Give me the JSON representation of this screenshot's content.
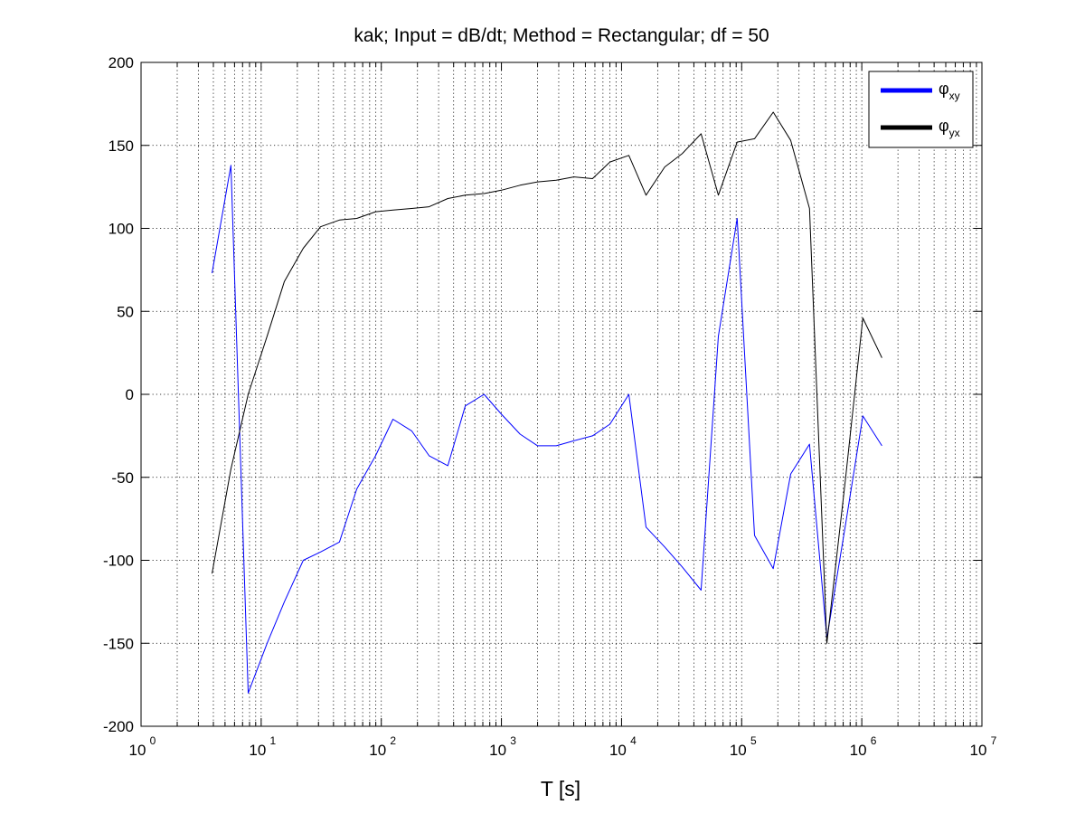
{
  "chart_data": {
    "type": "line",
    "title": "kak; Input = dB/dt; Method = Rectangular; df = 50",
    "xlabel": "T [s]",
    "ylabel": "",
    "xscale": "log",
    "xlim": [
      1,
      10000000
    ],
    "ylim": [
      -200,
      200
    ],
    "grid": true,
    "legend_position": "top-right",
    "x_tick_labels": [
      {
        "base": "10",
        "exp": "0"
      },
      {
        "base": "10",
        "exp": "1"
      },
      {
        "base": "10",
        "exp": "2"
      },
      {
        "base": "10",
        "exp": "3"
      },
      {
        "base": "10",
        "exp": "4"
      },
      {
        "base": "10",
        "exp": "5"
      },
      {
        "base": "10",
        "exp": "6"
      },
      {
        "base": "10",
        "exp": "7"
      }
    ],
    "y_tick_labels": [
      "200",
      "150",
      "100",
      "50",
      "0",
      "-50",
      "-100",
      "-150",
      "-200"
    ],
    "series": [
      {
        "name": "φxy",
        "legend_symbol": "φ",
        "legend_subscript": "xy",
        "color": "#0000ff",
        "x": [
          3.9,
          5.6,
          7.8,
          11.2,
          15.6,
          22.4,
          31.2,
          44.8,
          62.5,
          89.6,
          125,
          179,
          250,
          358,
          500,
          717,
          1000,
          1430,
          2000,
          2860,
          4000,
          5730,
          8000,
          11500,
          16000,
          22900,
          32000,
          45900,
          64000,
          91700,
          128000,
          183000,
          256000,
          367000,
          512000,
          734000,
          1020000,
          1470000
        ],
        "y": [
          73,
          138,
          -180,
          -150,
          -125,
          -100,
          -95,
          -89,
          -57,
          -37,
          -15,
          -22,
          -37,
          -43,
          -7,
          0,
          -12,
          -24,
          -31,
          -31,
          -28,
          -25,
          -18,
          0,
          -80,
          -92,
          -104,
          -118,
          35,
          106,
          -85,
          -105,
          -48,
          -30,
          -147,
          -78,
          -13,
          -31
        ]
      },
      {
        "name": "φyx",
        "legend_symbol": "φ",
        "legend_subscript": "yx",
        "color": "#000000",
        "x": [
          3.9,
          5.6,
          7.8,
          11.2,
          15.6,
          22.4,
          31.2,
          44.8,
          62.5,
          89.6,
          125,
          179,
          250,
          358,
          500,
          717,
          1000,
          1430,
          2000,
          2860,
          4000,
          5730,
          8000,
          11500,
          16000,
          22900,
          32000,
          45900,
          64000,
          91700,
          128000,
          183000,
          256000,
          367000,
          512000,
          734000,
          1020000,
          1470000
        ],
        "y": [
          -108,
          -45,
          0,
          35,
          68,
          88,
          101,
          105,
          106,
          110,
          111,
          112,
          113,
          118,
          120,
          121,
          123,
          126,
          128,
          129,
          131,
          130,
          140,
          144,
          120,
          137,
          145,
          157,
          120,
          152,
          154,
          170,
          153,
          112,
          -150,
          -50,
          46,
          22
        ]
      }
    ]
  }
}
